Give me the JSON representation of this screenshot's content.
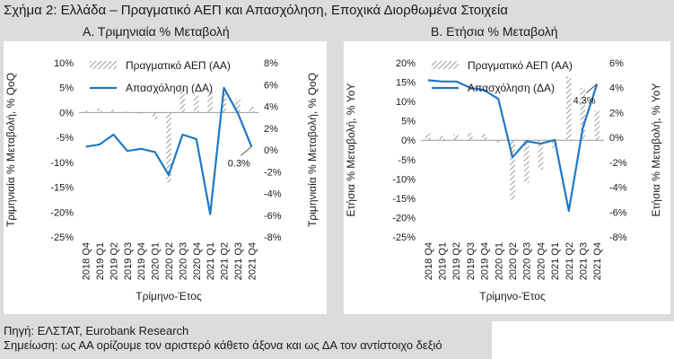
{
  "figure": {
    "title": "Σχήμα 2: Ελλάδα – Πραγματικό ΑΕΠ και Απασχόληση, Εποχικά Διορθωμένα Στοιχεία",
    "source": "Πηγή: ΕΛΣΤΑΤ, Eurobank Research",
    "note": "Σημείωση: ως ΑΑ ορίζουμε τον αριστερό κάθετο άξονα και ως ΔΑ τον αντίστοιχο δεξιό",
    "colors": {
      "bar_hatch": "#9e9e9e",
      "line": "#1f78c8",
      "background": "#dcdcdc",
      "panel": "#ffffff"
    }
  },
  "chart_data": [
    {
      "type": "bar",
      "subtitle": "Α. Τριμηνιαία % Μεταβολή",
      "xlabel": "Τρίμηνο-Έτος",
      "ylabel_left": "Τριμηνιαία % Μεταβολή, % QoQ",
      "ylabel_right": "Τριμηνιαία % Μεταβολή, % QoQ",
      "categories": [
        "2018 Q4",
        "2019 Q1",
        "2019 Q2",
        "2019 Q3",
        "2019 Q4",
        "2020 Q1",
        "2020 Q2",
        "2020 Q3",
        "2020 Q4",
        "2021 Q1",
        "2021 Q2",
        "2021 Q3",
        "2021 Q4"
      ],
      "y_left": {
        "min": -25,
        "max": 10,
        "ticks": [
          10,
          5,
          0,
          -5,
          -10,
          -15,
          -20,
          -25
        ],
        "tick_labels": [
          "10%",
          "5%",
          "0%",
          "-5%",
          "-10%",
          "-15%",
          "-20%",
          "-25%"
        ]
      },
      "y_right": {
        "min": -8,
        "max": 8,
        "ticks": [
          8,
          6,
          4,
          2,
          0,
          -2,
          -4,
          -6,
          -8
        ],
        "tick_labels": [
          "8%",
          "6%",
          "4%",
          "2%",
          "0%",
          "-2%",
          "-4%",
          "-6%",
          "-8%"
        ]
      },
      "series": [
        {
          "name": "Πραγματικό ΑΕΠ (ΑΑ)",
          "kind": "bar",
          "axis": "left",
          "values": [
            0.4,
            0.8,
            0.6,
            0.2,
            -0.2,
            -1.3,
            -14.1,
            4.7,
            3.5,
            4.4,
            3.8,
            2.8,
            1.2
          ]
        },
        {
          "name": "Απασχόληση (ΔΑ)",
          "kind": "line",
          "axis": "right",
          "values": [
            0.3,
            0.5,
            1.4,
            -0.1,
            0.1,
            -0.2,
            -2.3,
            1.4,
            1.0,
            -5.9,
            5.7,
            3.4,
            0.3
          ]
        }
      ],
      "annotation": {
        "text": "0.3%",
        "category": "2021 Q4",
        "value": 0.3
      },
      "legend": "top-center"
    },
    {
      "type": "bar",
      "subtitle": "Β. Ετήσια % Μεταβολή",
      "xlabel": "Τρίμηνο-Έτος",
      "ylabel_left": "Ετήσια % Μεταβολή, % YoY",
      "ylabel_right": "Ετήσια % Μεταβολή, % YoY",
      "categories": [
        "2018 Q4",
        "2019 Q1",
        "2019 Q2",
        "2019 Q3",
        "2019 Q4",
        "2020 Q1",
        "2020 Q2",
        "2020 Q3",
        "2020 Q4",
        "2021 Q1",
        "2021 Q2",
        "2021 Q3",
        "2021 Q4"
      ],
      "y_left": {
        "min": -25,
        "max": 20,
        "ticks": [
          20,
          15,
          10,
          5,
          0,
          -5,
          -10,
          -15,
          -20,
          -25
        ],
        "tick_labels": [
          "20%",
          "15%",
          "10%",
          "5%",
          "0%",
          "-5%",
          "-10%",
          "-15%",
          "-20%",
          "-25%"
        ]
      },
      "y_right": {
        "min": -8,
        "max": 6,
        "ticks": [
          6,
          4,
          2,
          0,
          -2,
          -4,
          -6,
          -8
        ],
        "tick_labels": [
          "6%",
          "4%",
          "2%",
          "0%",
          "-2%",
          "-4%",
          "-6%",
          "-8%"
        ]
      },
      "series": [
        {
          "name": "Πραγματικό ΑΕΠ (ΑΑ)",
          "kind": "bar",
          "axis": "left",
          "values": [
            1.8,
            1.1,
            1.6,
            1.9,
            1.6,
            -0.6,
            -15.4,
            -11.0,
            -7.6,
            -2.2,
            16.5,
            13.5,
            7.7
          ]
        },
        {
          "name": "Απασχόληση (ΔΑ)",
          "kind": "line",
          "axis": "right",
          "values": [
            4.6,
            4.5,
            4.5,
            4.0,
            3.8,
            3.1,
            -1.6,
            -0.3,
            -0.5,
            -0.2,
            -5.9,
            0.8,
            4.3
          ]
        }
      ],
      "annotation": {
        "text": "4.3%",
        "category": "2021 Q4",
        "value": 4.3
      },
      "legend": "top-center"
    }
  ]
}
